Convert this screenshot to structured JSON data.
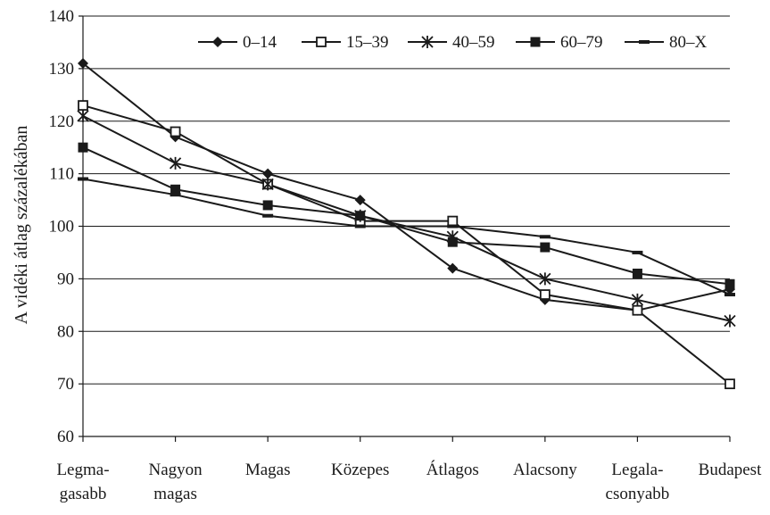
{
  "chart_data": {
    "type": "line",
    "title": "",
    "ylabel": "A vidéki átlag százalékában",
    "xlabel": "",
    "ylim": [
      60,
      140
    ],
    "yticks": [
      60,
      70,
      80,
      90,
      100,
      110,
      120,
      130,
      140
    ],
    "grid": true,
    "legend_position": "top-right",
    "categories": [
      [
        "Legma-",
        "gasabb"
      ],
      [
        "Nagyon",
        "magas"
      ],
      [
        "Magas"
      ],
      [
        "Közepes"
      ],
      [
        "Átlagos"
      ],
      [
        "Alacsony"
      ],
      [
        "Legala-",
        "csonyabb"
      ],
      [
        "Budapest"
      ]
    ],
    "series": [
      {
        "name": "0–14",
        "marker": "diamond",
        "values": [
          131,
          117,
          110,
          105,
          92,
          86,
          84,
          88
        ]
      },
      {
        "name": "15–39",
        "marker": "square-open",
        "values": [
          123,
          118,
          108,
          101,
          101,
          87,
          84,
          70
        ]
      },
      {
        "name": "40–59",
        "marker": "asterisk",
        "values": [
          121,
          112,
          108,
          102,
          98,
          90,
          86,
          82
        ]
      },
      {
        "name": "60–79",
        "marker": "square-filled",
        "values": [
          115,
          107,
          104,
          102,
          97,
          96,
          91,
          89
        ]
      },
      {
        "name": "80–X",
        "marker": "dash",
        "values": [
          109,
          106,
          102,
          100,
          100,
          98,
          95,
          87
        ]
      }
    ],
    "colors": {
      "ink": "#1a1a1a",
      "background": "#ffffff"
    }
  }
}
